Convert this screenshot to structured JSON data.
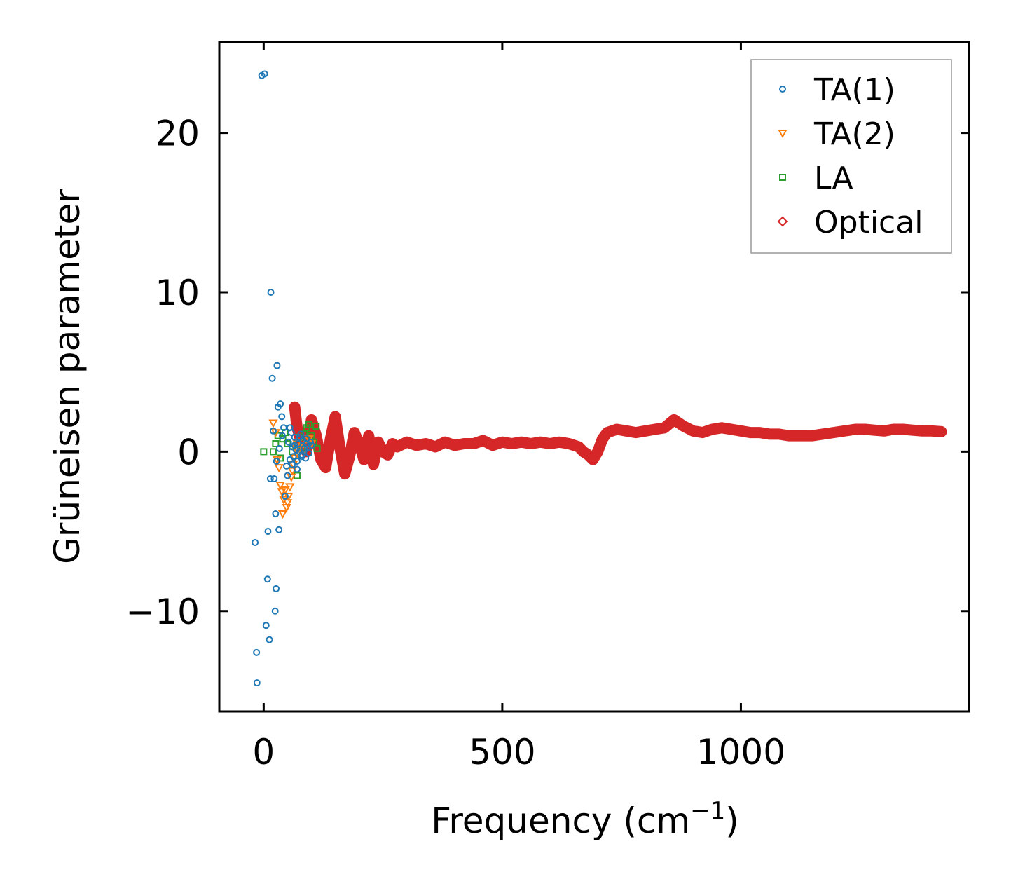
{
  "chart_data": {
    "type": "scatter",
    "xlabel": "Frequency (cm",
    "xlabel_sup": "−1",
    "xlabel_close": ")",
    "ylabel": "Grüneisen parameter",
    "xlim": [
      -93,
      1478
    ],
    "ylim": [
      -16.3,
      25.7
    ],
    "x_ticks": [
      0,
      500,
      1000
    ],
    "x_tick_labels": [
      "0",
      "500",
      "1000"
    ],
    "y_ticks": [
      -10,
      0,
      10,
      20
    ],
    "y_tick_labels": [
      "−10",
      "0",
      "10",
      "20"
    ],
    "legend_position": "top-right",
    "series": [
      {
        "name": "TA(1)",
        "marker": "circle",
        "color": "#1f77b4",
        "x": [
          -4,
          2,
          -18,
          -15,
          -14,
          5,
          12,
          8,
          9,
          15,
          18,
          20,
          22,
          25,
          26,
          28,
          30,
          32,
          35,
          38,
          42,
          45,
          50,
          14,
          24,
          27,
          33,
          39,
          48,
          52,
          55,
          58,
          60,
          62,
          65,
          68,
          70,
          72,
          75,
          78,
          80,
          82,
          85,
          88,
          90,
          92,
          95,
          98,
          100,
          55,
          60,
          65,
          70,
          75,
          80,
          85,
          90
        ],
        "y": [
          23.6,
          23.7,
          -5.7,
          -12.6,
          -14.5,
          -10.9,
          -11.8,
          -8.0,
          -5.0,
          10.0,
          4.6,
          1.3,
          -1.7,
          -3.9,
          -8.6,
          5.4,
          2.8,
          -4.9,
          3.0,
          2.2,
          1.5,
          -2.8,
          -1.5,
          -1.7,
          -10.0,
          -0.6,
          0.2,
          1.0,
          -0.9,
          0.6,
          -0.5,
          1.2,
          0.3,
          -0.3,
          0.9,
          0.1,
          -0.6,
          0.5,
          0.0,
          1.1,
          -0.2,
          0.7,
          0.2,
          -0.4,
          0.8,
          0.3,
          -0.1,
          0.6,
          0.4,
          1.5,
          -0.8,
          0.4,
          -1.1,
          0.9,
          -0.3,
          0.2,
          0.5
        ]
      },
      {
        "name": "TA(2)",
        "marker": "triangle-down",
        "color": "#ff7f0e",
        "x": [
          20,
          25,
          28,
          32,
          35,
          38,
          40,
          42,
          45,
          48,
          50,
          52,
          55,
          58,
          60,
          62,
          65,
          68,
          70,
          72,
          75,
          80,
          85,
          90,
          95,
          100
        ],
        "y": [
          1.8,
          1.2,
          -0.5,
          -1.0,
          -2.1,
          -2.5,
          -3.9,
          -3.0,
          -2.4,
          -3.5,
          -3.2,
          -2.8,
          -2.2,
          -1.6,
          -1.2,
          -0.8,
          -0.4,
          0.2,
          0.5,
          -0.2,
          0.3,
          0.6,
          0.1,
          0.4,
          0.8,
          0.5
        ]
      },
      {
        "name": "LA",
        "marker": "square",
        "color": "#2ca02c",
        "x": [
          0,
          20,
          25,
          30,
          35,
          40,
          45,
          50,
          60,
          70,
          75,
          80,
          85,
          90,
          95,
          100,
          105,
          110,
          112
        ],
        "y": [
          0.0,
          0.0,
          0.5,
          1.0,
          -0.4,
          0.8,
          1.2,
          0.5,
          0.0,
          -1.5,
          0.9,
          0.2,
          1.1,
          1.5,
          1.7,
          1.0,
          0.6,
          1.6,
          0.2
        ]
      },
      {
        "name": "Optical",
        "marker": "diamond",
        "color": "#d62728",
        "x": [
          65,
          70,
          80,
          90,
          100,
          110,
          120,
          130,
          140,
          150,
          160,
          170,
          180,
          190,
          200,
          210,
          220,
          230,
          240,
          250,
          260,
          270,
          280,
          300,
          320,
          340,
          360,
          380,
          400,
          420,
          440,
          460,
          480,
          500,
          520,
          540,
          560,
          580,
          600,
          620,
          640,
          660,
          670,
          680,
          690,
          700,
          710,
          720,
          740,
          760,
          780,
          800,
          820,
          840,
          860,
          880,
          900,
          920,
          940,
          960,
          980,
          1000,
          1020,
          1040,
          1060,
          1080,
          1100,
          1120,
          1140,
          1150,
          1240,
          1260,
          1280,
          1300,
          1320,
          1340,
          1360,
          1380,
          1400,
          1420
        ],
        "y": [
          2.8,
          1.5,
          0.5,
          0.0,
          2.0,
          1.0,
          -0.5,
          -1.0,
          0.8,
          2.2,
          0.2,
          -1.4,
          -0.3,
          1.2,
          0.5,
          -0.5,
          1.0,
          -0.8,
          0.6,
          0.0,
          -0.2,
          0.5,
          0.3,
          0.6,
          0.4,
          0.5,
          0.3,
          0.6,
          0.4,
          0.5,
          0.5,
          0.7,
          0.4,
          0.6,
          0.5,
          0.6,
          0.5,
          0.6,
          0.5,
          0.6,
          0.5,
          0.3,
          0.0,
          -0.2,
          -0.5,
          0.0,
          0.8,
          1.2,
          1.4,
          1.3,
          1.2,
          1.3,
          1.4,
          1.5,
          2.0,
          1.6,
          1.3,
          1.2,
          1.4,
          1.5,
          1.4,
          1.3,
          1.2,
          1.2,
          1.1,
          1.1,
          1.0,
          1.0,
          1.0,
          1.0,
          1.4,
          1.4,
          1.35,
          1.3,
          1.4,
          1.4,
          1.35,
          1.3,
          1.3,
          1.25
        ]
      }
    ]
  }
}
